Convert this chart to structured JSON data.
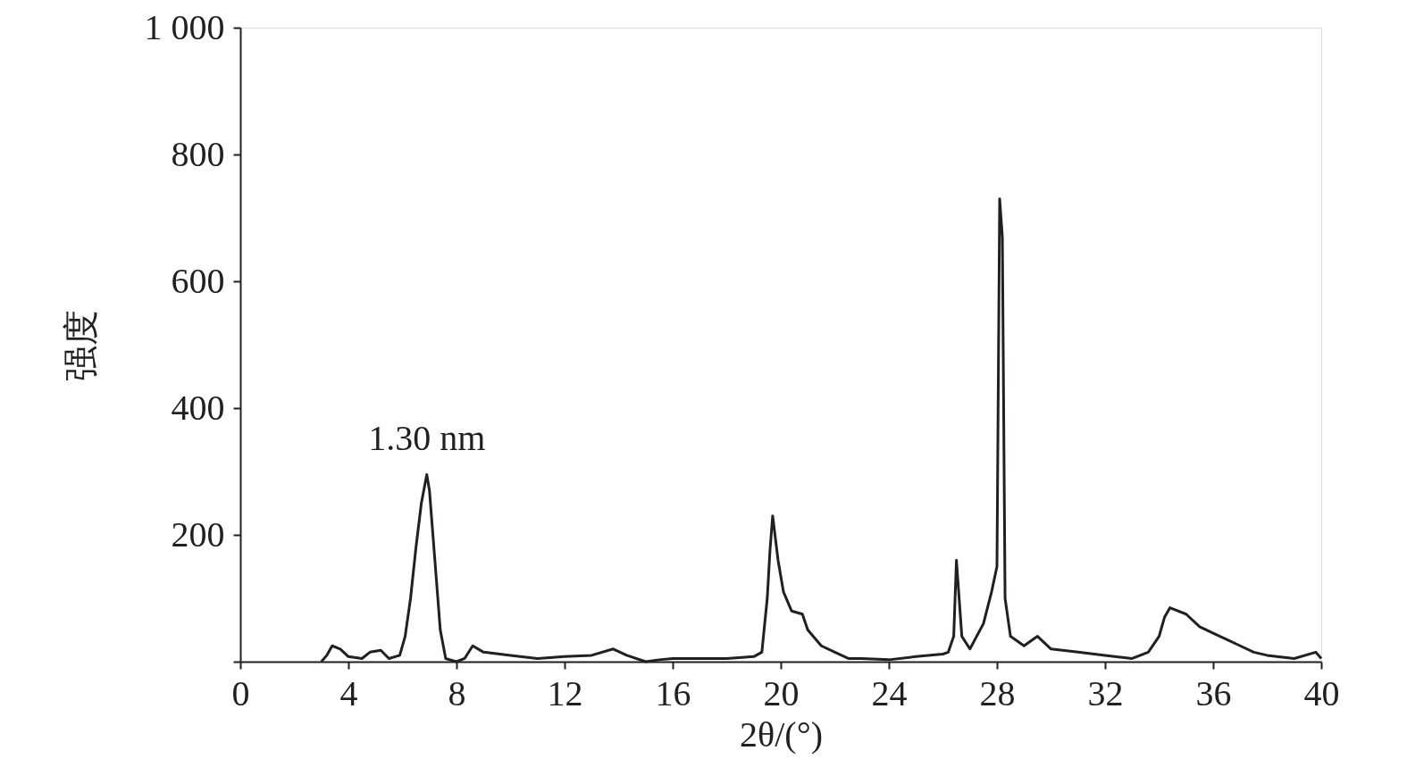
{
  "chart_data": {
    "type": "line",
    "xlabel": "2θ/(°)",
    "ylabel": "强度",
    "x": [
      3.0,
      3.2,
      3.4,
      3.7,
      4.0,
      4.5,
      4.8,
      5.2,
      5.5,
      5.9,
      6.1,
      6.3,
      6.5,
      6.7,
      6.9,
      7.0,
      7.2,
      7.4,
      7.6,
      8.0,
      8.3,
      8.6,
      9.0,
      10,
      11,
      12,
      13,
      13.8,
      14.3,
      15,
      15.5,
      16,
      17,
      18,
      19,
      19.3,
      19.5,
      19.6,
      19.7,
      19.9,
      20.1,
      20.4,
      20.8,
      21.0,
      21.5,
      22,
      22.5,
      23,
      24,
      25,
      26,
      26.2,
      26.4,
      26.5,
      26.7,
      27,
      27.5,
      27.8,
      28.0,
      28.1,
      28.2,
      28.3,
      28.5,
      29,
      29.5,
      30,
      31,
      32,
      33,
      33.6,
      34,
      34.2,
      34.4,
      35,
      35.5,
      36,
      36.5,
      37,
      37.5,
      38,
      39,
      39.8,
      40
    ],
    "series": [
      {
        "color": "#231f20",
        "values": [
          0,
          10,
          25,
          20,
          8,
          5,
          15,
          18,
          5,
          10,
          40,
          100,
          180,
          250,
          295,
          270,
          160,
          50,
          5,
          0,
          5,
          25,
          15,
          10,
          5,
          8,
          10,
          20,
          10,
          0,
          3,
          5,
          5,
          5,
          8,
          15,
          100,
          175,
          230,
          160,
          110,
          80,
          75,
          50,
          25,
          15,
          5,
          5,
          3,
          8,
          12,
          15,
          40,
          160,
          40,
          20,
          60,
          110,
          150,
          730,
          670,
          100,
          40,
          25,
          40,
          20,
          15,
          10,
          5,
          15,
          40,
          70,
          85,
          75,
          55,
          45,
          35,
          25,
          15,
          10,
          5,
          15,
          5
        ]
      }
    ],
    "xlim": [
      0,
      40
    ],
    "xticks": [
      0,
      4,
      8,
      12,
      16,
      20,
      24,
      28,
      32,
      36,
      40
    ],
    "ylim": [
      0,
      1000
    ],
    "yticks": [
      {
        "value": 0,
        "label": null
      },
      200,
      400,
      600,
      800,
      {
        "value": 1000,
        "label": "1 000"
      }
    ],
    "annotations": [
      {
        "text": "1.30 nm",
        "x": 6.9,
        "y": 295
      }
    ],
    "grid": false,
    "marker": "none",
    "line_style": "solid"
  }
}
